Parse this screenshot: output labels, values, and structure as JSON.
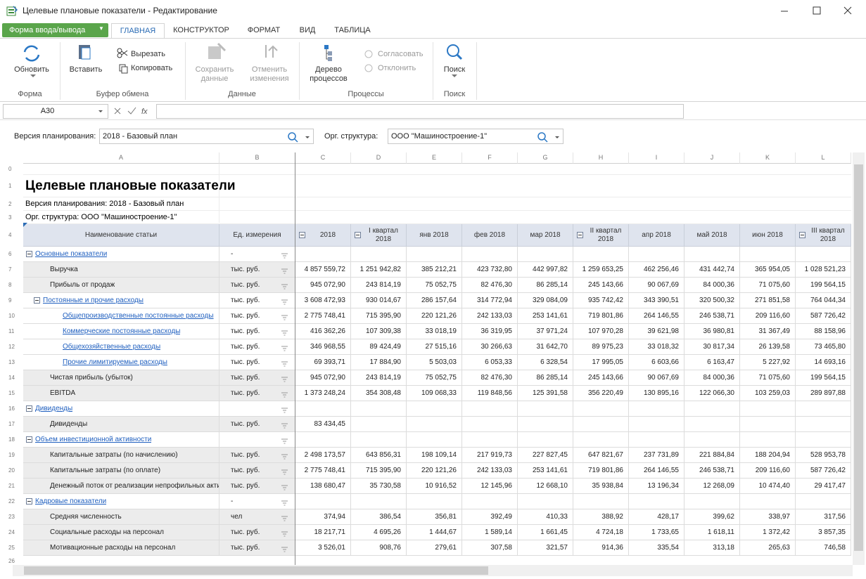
{
  "window_title": "Целевые плановые показатели - Редактирование",
  "form_button": "Форма ввода/вывода",
  "tabs": [
    "ГЛАВНАЯ",
    "КОНСТРУКТОР",
    "ФОРМАТ",
    "ВИД",
    "ТАБЛИЦА"
  ],
  "ribbon": [
    {
      "label": "Форма",
      "large": [
        {
          "lines": [
            "Обновить"
          ]
        }
      ],
      "small": []
    },
    {
      "label": "Буфер обмена",
      "large": [
        {
          "lines": [
            "Вставить"
          ]
        }
      ],
      "small": [
        {
          "text": "Вырезать"
        },
        {
          "text": "Копировать"
        }
      ]
    },
    {
      "label": "Данные",
      "large": [
        {
          "lines": [
            "Сохранить",
            "данные"
          ],
          "disabled": true
        },
        {
          "lines": [
            "Отменить",
            "изменения"
          ],
          "disabled": true
        }
      ],
      "small": []
    },
    {
      "label": "Процессы",
      "large": [
        {
          "lines": [
            "Дерево",
            "процессов"
          ]
        }
      ],
      "small": [
        {
          "text": "Согласовать",
          "disabled": true
        },
        {
          "text": "Отклонить",
          "disabled": true
        }
      ]
    },
    {
      "label": "Поиск",
      "large": [
        {
          "lines": [
            "Поиск"
          ]
        }
      ],
      "small": []
    }
  ],
  "cell_ref": "A30",
  "filters": [
    {
      "label": "Версия планирования:",
      "value": "2018 - Базовый план"
    },
    {
      "label": "Орг. структура:",
      "value": "ООО \"Машиностроение-1\""
    }
  ],
  "sheet": {
    "columns": [
      "A",
      "B",
      "C",
      "D",
      "E",
      "F",
      "G",
      "H",
      "I",
      "J",
      "K",
      "L"
    ],
    "top_rows": [
      {
        "n": 0
      },
      {
        "n": 1,
        "text": "Целевые плановые показатели"
      },
      {
        "n": 2,
        "text": "Версия планирования: 2018 - Базовый план"
      },
      {
        "n": 3,
        "text": "Орг. структура: ООО \"Машиностроение-1\""
      }
    ],
    "header": {
      "n": 4,
      "cells": [
        {
          "text": "Наименование статьи"
        },
        {
          "text": "Ед. измерения"
        },
        {
          "text": "2018",
          "collapsible": true
        },
        {
          "text": "I квартал 2018",
          "collapsible": true
        },
        {
          "text": "янв 2018"
        },
        {
          "text": "фев 2018"
        },
        {
          "text": "мар 2018"
        },
        {
          "text": "II квартал 2018",
          "collapsible": true
        },
        {
          "text": "апр 2018"
        },
        {
          "text": "май 2018"
        },
        {
          "text": "июн 2018"
        },
        {
          "text": "III квартал 2018",
          "collapsible": true
        }
      ]
    },
    "rows": [
      {
        "n": 6,
        "name": "Основные показатели",
        "unit": "-",
        "level": 0,
        "link": true,
        "collapsible": true,
        "values": []
      },
      {
        "n": 7,
        "name": "Выручка",
        "unit": "тыс. руб.",
        "level": 1,
        "values": [
          "4 857 559,72",
          "1 251 942,82",
          "385 212,21",
          "423 732,80",
          "442 997,82",
          "1 259 653,25",
          "462 256,46",
          "431 442,74",
          "365 954,05",
          "1 028 521,23"
        ]
      },
      {
        "n": 8,
        "name": "Прибыль от продаж",
        "unit": "тыс. руб.",
        "level": 1,
        "values": [
          "945 072,90",
          "243 814,19",
          "75 052,75",
          "82 476,30",
          "86 285,14",
          "245 143,66",
          "90 067,69",
          "84 000,36",
          "71 075,60",
          "199 564,15"
        ]
      },
      {
        "n": 9,
        "name": "Постоянные и прочие расходы",
        "unit": "тыс. руб.",
        "level": 1,
        "link": true,
        "collapsible": true,
        "values": [
          "3 608 472,93",
          "930 014,67",
          "286 157,64",
          "314 772,94",
          "329 084,09",
          "935 742,42",
          "343 390,51",
          "320 500,32",
          "271 851,58",
          "764 044,34"
        ]
      },
      {
        "n": 10,
        "name": "Общепроизводственные постоянные расходы",
        "unit": "тыс. руб.",
        "level": 2,
        "link": true,
        "values": [
          "2 775 748,41",
          "715 395,90",
          "220 121,26",
          "242 133,03",
          "253 141,61",
          "719 801,86",
          "264 146,55",
          "246 538,71",
          "209 116,60",
          "587 726,42"
        ]
      },
      {
        "n": 11,
        "name": "Коммерческие постоянные расходы",
        "unit": "тыс. руб.",
        "level": 2,
        "link": true,
        "values": [
          "416 362,26",
          "107 309,38",
          "33 018,19",
          "36 319,95",
          "37 971,24",
          "107 970,28",
          "39 621,98",
          "36 980,81",
          "31 367,49",
          "88 158,96"
        ]
      },
      {
        "n": 12,
        "name": "Общехозяйственные расходы",
        "unit": "тыс. руб.",
        "level": 2,
        "link": true,
        "values": [
          "346 968,55",
          "89 424,49",
          "27 515,16",
          "30 266,63",
          "31 642,70",
          "89 975,23",
          "33 018,32",
          "30 817,34",
          "26 139,58",
          "73 465,80"
        ]
      },
      {
        "n": 13,
        "name": "Прочие лимитируемые расходы",
        "unit": "тыс. руб.",
        "level": 2,
        "link": true,
        "values": [
          "69 393,71",
          "17 884,90",
          "5 503,03",
          "6 053,33",
          "6 328,54",
          "17 995,05",
          "6 603,66",
          "6 163,47",
          "5 227,92",
          "14 693,16"
        ]
      },
      {
        "n": 14,
        "name": "Чистая прибыль (убыток)",
        "unit": "тыс. руб.",
        "level": 1,
        "values": [
          "945 072,90",
          "243 814,19",
          "75 052,75",
          "82 476,30",
          "86 285,14",
          "245 143,66",
          "90 067,69",
          "84 000,36",
          "71 075,60",
          "199 564,15"
        ]
      },
      {
        "n": 15,
        "name": "EBITDA",
        "unit": "тыс. руб.",
        "level": 1,
        "values": [
          "1 373 248,24",
          "354 308,48",
          "109 068,33",
          "119 848,56",
          "125 391,58",
          "356 220,49",
          "130 895,16",
          "122 066,30",
          "103 259,03",
          "289 897,88"
        ]
      },
      {
        "n": 16,
        "name": "Дивиденды",
        "level": 0,
        "link": true,
        "collapsible": true,
        "values": []
      },
      {
        "n": 17,
        "name": "Дивиденды",
        "unit": "тыс. руб.",
        "level": 1,
        "values": [
          "83 434,45"
        ]
      },
      {
        "n": 18,
        "name": "Объем инвестиционной активности",
        "level": 0,
        "link": true,
        "collapsible": true,
        "values": []
      },
      {
        "n": 19,
        "name": "Капитальные затраты (по начислению)",
        "unit": "тыс. руб.",
        "level": 1,
        "values": [
          "2 498 173,57",
          "643 856,31",
          "198 109,14",
          "217 919,73",
          "227 827,45",
          "647 821,67",
          "237 731,89",
          "221 884,84",
          "188 204,94",
          "528 953,78"
        ]
      },
      {
        "n": 20,
        "name": "Капитальные затраты (по оплате)",
        "unit": "тыс. руб.",
        "level": 1,
        "values": [
          "2 775 748,41",
          "715 395,90",
          "220 121,26",
          "242 133,03",
          "253 141,61",
          "719 801,86",
          "264 146,55",
          "246 538,71",
          "209 116,60",
          "587 726,42"
        ]
      },
      {
        "n": 21,
        "name": "Денежный поток от реализации непрофильных активов",
        "unit": "тыс. руб.",
        "level": 1,
        "values": [
          "138 680,47",
          "35 730,58",
          "10 916,52",
          "12 145,96",
          "12 668,10",
          "35 938,84",
          "13 196,34",
          "12 268,09",
          "10 474,40",
          "29 417,47"
        ]
      },
      {
        "n": 22,
        "name": "Кадровые показатели",
        "unit": "-",
        "level": 0,
        "link": true,
        "collapsible": true,
        "values": []
      },
      {
        "n": 23,
        "name": "Средняя численность",
        "unit": "чел",
        "level": 1,
        "values": [
          "374,94",
          "386,54",
          "356,81",
          "392,49",
          "410,33",
          "388,92",
          "428,17",
          "399,62",
          "338,97",
          "317,56"
        ]
      },
      {
        "n": 24,
        "name": "Социальные расходы на персонал",
        "unit": "тыс. руб.",
        "level": 1,
        "values": [
          "18 217,71",
          "4 695,26",
          "1 444,67",
          "1 589,14",
          "1 661,45",
          "4 724,18",
          "1 733,65",
          "1 618,11",
          "1 372,42",
          "3 857,35"
        ]
      },
      {
        "n": 25,
        "name": "Мотивационные расходы на персонал",
        "unit": "тыс. руб.",
        "level": 1,
        "values": [
          "3 526,01",
          "908,76",
          "279,61",
          "307,58",
          "321,57",
          "914,36",
          "335,54",
          "313,18",
          "265,63",
          "746,58"
        ]
      }
    ],
    "bottom_rows": [
      {
        "n": 26
      }
    ]
  }
}
